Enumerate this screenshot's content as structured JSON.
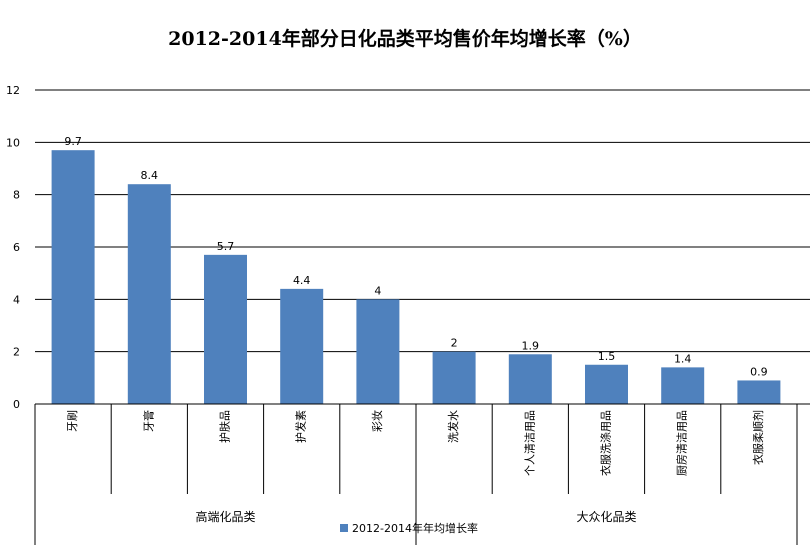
{
  "chart_data": {
    "type": "bar",
    "title": "2012-2014年部分日化品类平均售价年均增长率（%）",
    "categories": [
      "牙刷",
      "牙膏",
      "护肤品",
      "护发素",
      "彩妆",
      "洗发水",
      "个人清洁用品",
      "衣服洗涤用品",
      "厨房清洁用品",
      "衣服柔顺剂"
    ],
    "values": [
      9.7,
      8.4,
      5.7,
      4.4,
      4,
      2,
      1.9,
      1.5,
      1.4,
      0.9
    ],
    "data_labels": [
      "9.7",
      "8.4",
      "5.7",
      "4.4",
      "4",
      "2",
      "1.9",
      "1.5",
      "1.4",
      "0.9"
    ],
    "groups": [
      {
        "label": "高端化品类",
        "count": 5
      },
      {
        "label": "大众化品类",
        "count": 5
      }
    ],
    "series": [
      {
        "name": "2012-2014年年均增长率",
        "values": [
          9.7,
          8.4,
          5.7,
          4.4,
          4,
          2,
          1.9,
          1.5,
          1.4,
          0.9
        ]
      }
    ],
    "ylim": [
      0,
      12
    ],
    "yticks": [
      0,
      2,
      4,
      6,
      8,
      10,
      12
    ],
    "grid": true,
    "legend_position": "bottom",
    "bar_color": "#4f81bd"
  }
}
